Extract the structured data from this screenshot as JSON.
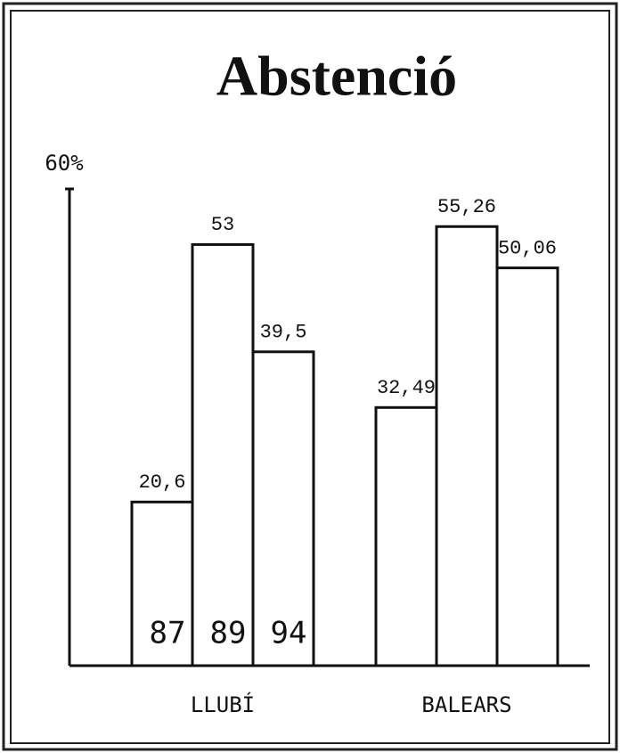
{
  "chart_data": {
    "type": "bar",
    "title": "Abstenció",
    "categories": [
      "LLUBÍ",
      "BALEARS"
    ],
    "series": [
      {
        "name": "87",
        "color": "#ffffff",
        "values": [
          20.6,
          32.49
        ],
        "value_labels": [
          "20,6",
          "32,49"
        ]
      },
      {
        "name": "89",
        "color": "#ffffff",
        "values": [
          53,
          55.26
        ],
        "value_labels": [
          "53",
          "55,26"
        ]
      },
      {
        "name": "94",
        "color": "#ffffff",
        "values": [
          39.5,
          50.06
        ],
        "value_labels": [
          "39,5",
          "50,06"
        ]
      }
    ],
    "ylim": [
      0,
      60
    ],
    "yticks": [
      {
        "value": 60,
        "label": "60%"
      }
    ],
    "grid": false
  }
}
